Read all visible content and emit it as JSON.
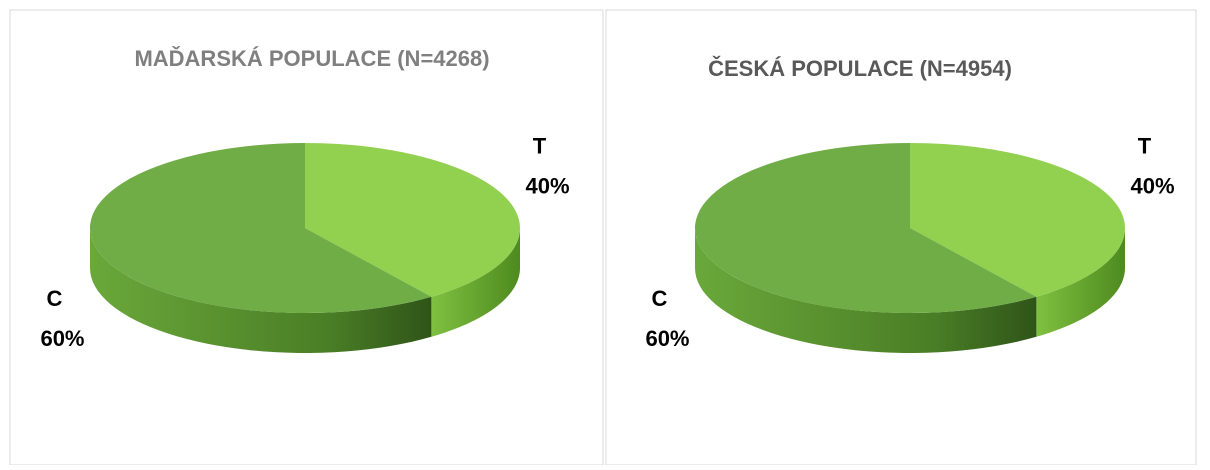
{
  "chart_data": [
    {
      "type": "pie",
      "title": "MAĎARSKÁ POPULACE (N=4268)",
      "title_color": "#7f7f7f",
      "categories": [
        "T",
        "C"
      ],
      "values": [
        40,
        60
      ],
      "value_labels": [
        "40%",
        "60%"
      ],
      "colors": [
        "#92d050",
        "#70ad47"
      ]
    },
    {
      "type": "pie",
      "title": "ČESKÁ POPULACE (N=4954)",
      "title_color": "#595959",
      "categories": [
        "T",
        "C"
      ],
      "values": [
        40,
        60
      ],
      "value_labels": [
        "40%",
        "60%"
      ],
      "colors": [
        "#92d050",
        "#70ad47"
      ]
    }
  ]
}
